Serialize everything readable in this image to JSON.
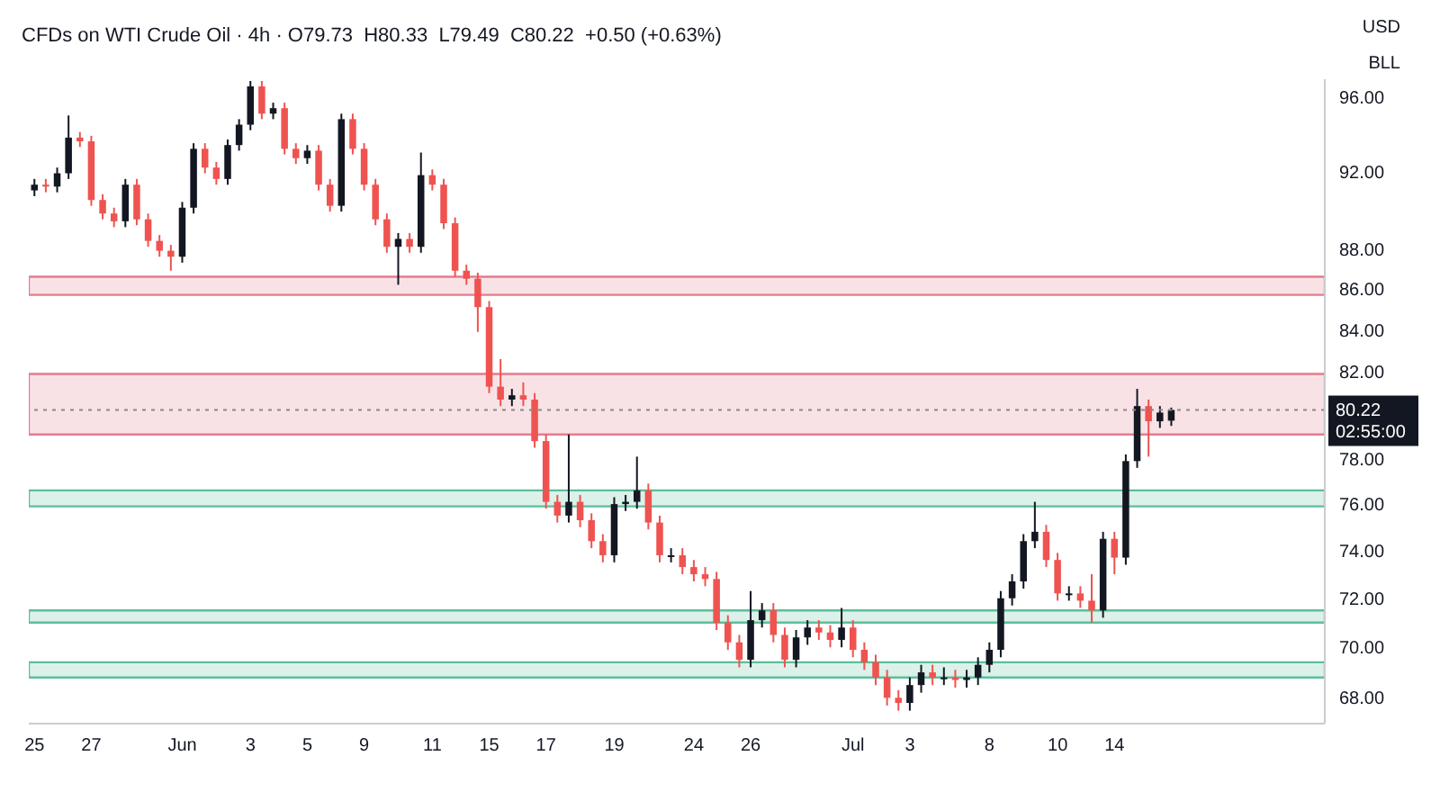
{
  "chart_data": {
    "type": "candlestick",
    "title": "CFDs on WTI Crude Oil · 4h · O79.73  H80.33  L79.49  C80.22  +0.50 (+0.63%)",
    "annotations": [
      "USD",
      "BLL",
      "02:55:00"
    ],
    "log": true,
    "ylim": [
      67,
      97
    ],
    "yticks": [
      {
        "value": 68,
        "label": "68.00"
      },
      {
        "value": 70,
        "label": "70.00"
      },
      {
        "value": 72,
        "label": "72.00"
      },
      {
        "value": 74,
        "label": "74.00"
      },
      {
        "value": 76,
        "label": "76.00"
      },
      {
        "value": 78,
        "label": "78.00"
      },
      {
        "value": 82,
        "label": "82.00"
      },
      {
        "value": 84,
        "label": "84.00"
      },
      {
        "value": 86,
        "label": "86.00"
      },
      {
        "value": 88,
        "label": "88.00"
      },
      {
        "value": 92,
        "label": "92.00"
      },
      {
        "value": 96,
        "label": "96.00"
      }
    ],
    "categories": [
      "25",
      null,
      null,
      null,
      null,
      "27",
      null,
      null,
      null,
      null,
      null,
      null,
      null,
      "Jun",
      null,
      null,
      null,
      null,
      null,
      "3",
      null,
      null,
      null,
      null,
      "5",
      null,
      null,
      null,
      null,
      "9",
      null,
      null,
      null,
      null,
      null,
      "11",
      null,
      null,
      null,
      null,
      "15",
      null,
      null,
      null,
      null,
      "17",
      null,
      null,
      null,
      null,
      null,
      "19",
      null,
      null,
      null,
      null,
      null,
      null,
      "24",
      null,
      null,
      null,
      null,
      "26",
      null,
      null,
      null,
      null,
      null,
      null,
      null,
      null,
      "Jul",
      null,
      null,
      null,
      null,
      "3",
      null,
      null,
      null,
      null,
      null,
      null,
      "8",
      null,
      null,
      null,
      null,
      null,
      "10",
      null,
      null,
      null,
      null,
      "14",
      null,
      null,
      null,
      null,
      null,
      null,
      null,
      null,
      null,
      null,
      null,
      null,
      null,
      null,
      null,
      null,
      null,
      null
    ],
    "ohlc": [
      [
        91.0,
        91.6,
        90.7,
        91.3
      ],
      [
        91.3,
        91.6,
        90.9,
        91.2
      ],
      [
        91.2,
        92.2,
        90.9,
        91.9
      ],
      [
        91.9,
        95.0,
        91.6,
        93.8
      ],
      [
        93.8,
        94.1,
        93.3,
        93.6
      ],
      [
        93.6,
        93.9,
        90.2,
        90.5
      ],
      [
        90.5,
        90.8,
        89.5,
        89.8
      ],
      [
        89.8,
        90.1,
        89.1,
        89.4
      ],
      [
        89.4,
        91.6,
        89.1,
        91.3
      ],
      [
        91.3,
        91.6,
        89.2,
        89.5
      ],
      [
        89.5,
        89.8,
        88.1,
        88.4
      ],
      [
        88.4,
        88.7,
        87.6,
        87.9
      ],
      [
        87.9,
        88.2,
        86.9,
        87.6
      ],
      [
        87.6,
        90.4,
        87.3,
        90.1
      ],
      [
        90.1,
        93.5,
        89.8,
        93.2
      ],
      [
        93.2,
        93.5,
        91.9,
        92.2
      ],
      [
        92.2,
        92.5,
        91.3,
        91.6
      ],
      [
        91.6,
        93.7,
        91.3,
        93.4
      ],
      [
        93.4,
        94.8,
        93.1,
        94.5
      ],
      [
        94.5,
        96.9,
        94.2,
        96.6
      ],
      [
        96.6,
        96.9,
        94.8,
        95.1
      ],
      [
        95.1,
        95.7,
        94.8,
        95.4
      ],
      [
        95.4,
        95.7,
        92.9,
        93.2
      ],
      [
        93.2,
        93.5,
        92.4,
        92.7
      ],
      [
        92.7,
        93.4,
        92.4,
        93.1
      ],
      [
        93.1,
        93.4,
        91.0,
        91.3
      ],
      [
        91.3,
        91.6,
        89.9,
        90.2
      ],
      [
        90.2,
        95.1,
        89.9,
        94.8
      ],
      [
        94.8,
        95.1,
        92.9,
        93.2
      ],
      [
        93.2,
        93.5,
        91.0,
        91.3
      ],
      [
        91.3,
        91.6,
        89.2,
        89.5
      ],
      [
        89.5,
        89.8,
        87.8,
        88.1
      ],
      [
        88.1,
        88.8,
        86.2,
        88.5
      ],
      [
        88.5,
        88.8,
        87.8,
        88.1
      ],
      [
        88.1,
        93.0,
        87.8,
        91.8
      ],
      [
        91.8,
        92.1,
        91.0,
        91.3
      ],
      [
        91.3,
        91.6,
        89.0,
        89.3
      ],
      [
        89.3,
        89.6,
        86.6,
        86.9
      ],
      [
        86.9,
        87.2,
        86.2,
        86.5
      ],
      [
        86.5,
        86.8,
        83.9,
        85.1
      ],
      [
        85.1,
        85.4,
        81.0,
        81.3
      ],
      [
        81.3,
        82.6,
        80.4,
        80.7
      ],
      [
        80.7,
        81.2,
        80.4,
        80.9
      ],
      [
        80.9,
        81.5,
        80.4,
        80.7
      ],
      [
        80.7,
        81.0,
        78.5,
        78.8
      ],
      [
        78.8,
        79.1,
        75.8,
        76.1
      ],
      [
        76.1,
        76.4,
        75.2,
        75.5
      ],
      [
        75.5,
        79.1,
        75.2,
        76.1
      ],
      [
        76.1,
        76.4,
        75.0,
        75.3
      ],
      [
        75.3,
        75.6,
        74.1,
        74.4
      ],
      [
        74.4,
        74.7,
        73.5,
        73.8
      ],
      [
        73.8,
        76.3,
        73.5,
        76.0
      ],
      [
        76.0,
        76.4,
        75.7,
        76.1
      ],
      [
        76.1,
        78.1,
        75.8,
        76.6
      ],
      [
        76.6,
        76.9,
        74.9,
        75.2
      ],
      [
        75.2,
        75.5,
        73.5,
        73.8
      ],
      [
        73.8,
        74.1,
        73.5,
        73.8
      ],
      [
        73.8,
        74.1,
        73.0,
        73.3
      ],
      [
        73.3,
        73.6,
        72.7,
        73.0
      ],
      [
        73.0,
        73.3,
        72.5,
        72.8
      ],
      [
        72.8,
        73.1,
        70.7,
        71.0
      ],
      [
        71.0,
        71.3,
        69.9,
        70.2
      ],
      [
        70.2,
        70.5,
        69.2,
        69.5
      ],
      [
        69.5,
        72.3,
        69.2,
        71.1
      ],
      [
        71.1,
        71.8,
        70.8,
        71.5
      ],
      [
        71.5,
        71.8,
        70.2,
        70.5
      ],
      [
        70.5,
        70.8,
        69.2,
        69.5
      ],
      [
        69.5,
        70.7,
        69.2,
        70.4
      ],
      [
        70.4,
        71.1,
        70.1,
        70.8
      ],
      [
        70.8,
        71.1,
        70.3,
        70.6
      ],
      [
        70.6,
        70.9,
        70.0,
        70.3
      ],
      [
        70.3,
        71.6,
        70.0,
        70.8
      ],
      [
        70.8,
        71.1,
        69.6,
        69.9
      ],
      [
        69.9,
        70.2,
        69.1,
        69.4
      ],
      [
        69.4,
        69.7,
        68.5,
        68.8
      ],
      [
        68.8,
        69.1,
        67.7,
        68.0
      ],
      [
        68.0,
        68.3,
        67.5,
        67.8
      ],
      [
        67.8,
        68.8,
        67.5,
        68.5
      ],
      [
        68.5,
        69.3,
        68.2,
        69.0
      ],
      [
        69.0,
        69.3,
        68.5,
        68.8
      ],
      [
        68.8,
        69.2,
        68.5,
        68.8
      ],
      [
        68.8,
        69.1,
        68.4,
        68.7
      ],
      [
        68.7,
        69.1,
        68.4,
        68.8
      ],
      [
        68.8,
        69.6,
        68.5,
        69.3
      ],
      [
        69.3,
        70.2,
        69.0,
        69.9
      ],
      [
        69.9,
        72.3,
        69.6,
        72.0
      ],
      [
        72.0,
        73.0,
        71.7,
        72.7
      ],
      [
        72.7,
        74.7,
        72.4,
        74.4
      ],
      [
        74.4,
        76.1,
        74.1,
        74.8
      ],
      [
        74.8,
        75.1,
        73.3,
        73.6
      ],
      [
        73.6,
        73.9,
        71.9,
        72.2
      ],
      [
        72.2,
        72.5,
        71.9,
        72.2
      ],
      [
        72.2,
        72.5,
        71.6,
        71.9
      ],
      [
        71.9,
        73.0,
        71.0,
        71.5
      ],
      [
        71.5,
        74.8,
        71.2,
        74.5
      ],
      [
        74.5,
        74.8,
        73.0,
        73.7
      ],
      [
        73.7,
        78.2,
        73.4,
        77.9
      ],
      [
        77.9,
        81.2,
        77.6,
        80.4
      ],
      [
        80.4,
        80.7,
        78.1,
        79.7
      ],
      [
        79.7,
        80.4,
        79.4,
        80.1
      ],
      [
        79.73,
        80.33,
        79.49,
        80.22
      ],
      null,
      null,
      null,
      null,
      null,
      null,
      null,
      null,
      null,
      null,
      null,
      null,
      null
    ],
    "colors": [
      "#131722",
      "#ef5350",
      "#131722",
      "#131722",
      "#ef5350",
      "#ef5350",
      "#ef5350",
      "#ef5350",
      "#131722",
      "#ef5350",
      "#ef5350",
      "#ef5350",
      "#ef5350",
      "#131722",
      "#131722",
      "#ef5350",
      "#ef5350",
      "#131722",
      "#131722",
      "#131722",
      "#ef5350",
      "#131722",
      "#ef5350",
      "#ef5350",
      "#131722",
      "#ef5350",
      "#ef5350",
      "#131722",
      "#ef5350",
      "#ef5350",
      "#ef5350",
      "#ef5350",
      "#131722",
      "#ef5350",
      "#131722",
      "#ef5350",
      "#ef5350",
      "#ef5350",
      "#ef5350",
      "#ef5350",
      "#ef5350",
      "#ef5350",
      "#131722",
      "#ef5350",
      "#ef5350",
      "#ef5350",
      "#ef5350",
      "#131722",
      "#ef5350",
      "#ef5350",
      "#ef5350",
      "#131722",
      "#131722",
      "#131722",
      "#ef5350",
      "#ef5350",
      "#131722",
      "#ef5350",
      "#ef5350",
      "#ef5350",
      "#ef5350",
      "#ef5350",
      "#ef5350",
      "#131722",
      "#131722",
      "#ef5350",
      "#ef5350",
      "#131722",
      "#131722",
      "#ef5350",
      "#ef5350",
      "#131722",
      "#ef5350",
      "#ef5350",
      "#ef5350",
      "#ef5350",
      "#ef5350",
      "#131722",
      "#131722",
      "#ef5350",
      "#131722",
      "#ef5350",
      "#131722",
      "#131722",
      "#131722",
      "#131722",
      "#131722",
      "#131722",
      "#131722",
      "#ef5350",
      "#ef5350",
      "#131722",
      "#ef5350",
      "#ef5350",
      "#131722",
      "#ef5350",
      "#131722",
      "#131722",
      "#ef5350",
      "#131722",
      "#131722",
      null,
      null,
      null,
      null,
      null,
      null,
      null,
      null,
      null,
      null,
      null,
      null,
      null
    ],
    "bands": [
      {
        "axis": "y",
        "from": 85.7,
        "to": 86.6,
        "color": "#e57c8f"
      },
      {
        "axis": "y",
        "from": 79.1,
        "to": 81.9,
        "color": "#e57c8f"
      },
      {
        "axis": "y",
        "from": 75.9,
        "to": 76.6,
        "color": "#5cbf9a"
      },
      {
        "axis": "y",
        "from": 71.0,
        "to": 71.5,
        "color": "#5cbf9a"
      },
      {
        "axis": "y",
        "from": 68.8,
        "to": 69.4,
        "color": "#5cbf9a"
      }
    ],
    "ref_lines": [
      {
        "axis": "y",
        "value": 80.22,
        "label": "80.22",
        "color": "#888888",
        "line_style": "dotted"
      }
    ]
  }
}
